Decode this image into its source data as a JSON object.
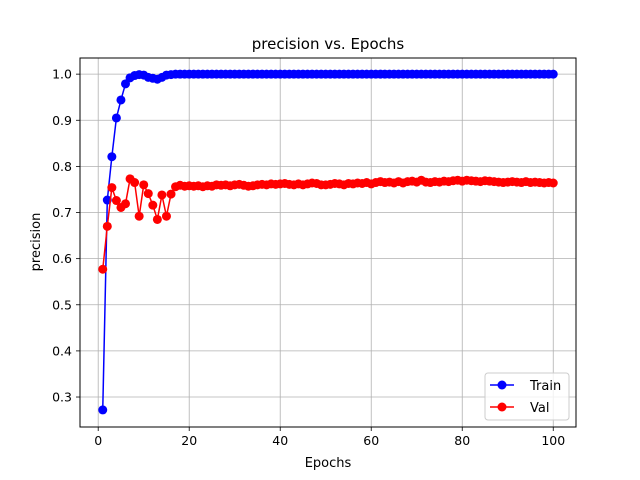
{
  "chart_data": {
    "type": "line",
    "title": "precision vs. Epochs",
    "xlabel": "Epochs",
    "ylabel": "precision",
    "xlim": [
      -4,
      105
    ],
    "ylim": [
      0.235,
      1.035
    ],
    "xticks": [
      0,
      20,
      40,
      60,
      80,
      100
    ],
    "yticks": [
      0.3,
      0.4,
      0.5,
      0.6,
      0.7,
      0.8,
      0.9,
      1.0
    ],
    "grid": true,
    "legend_position": "bottom-right",
    "x": [
      1,
      2,
      3,
      4,
      5,
      6,
      7,
      8,
      9,
      10,
      11,
      12,
      13,
      14,
      15,
      16,
      17,
      18,
      19,
      20,
      21,
      22,
      23,
      24,
      25,
      26,
      27,
      28,
      29,
      30,
      31,
      32,
      33,
      34,
      35,
      36,
      37,
      38,
      39,
      40,
      41,
      42,
      43,
      44,
      45,
      46,
      47,
      48,
      49,
      50,
      51,
      52,
      53,
      54,
      55,
      56,
      57,
      58,
      59,
      60,
      61,
      62,
      63,
      64,
      65,
      66,
      67,
      68,
      69,
      70,
      71,
      72,
      73,
      74,
      75,
      76,
      77,
      78,
      79,
      80,
      81,
      82,
      83,
      84,
      85,
      86,
      87,
      88,
      89,
      90,
      91,
      92,
      93,
      94,
      95,
      96,
      97,
      98,
      99,
      100
    ],
    "series": [
      {
        "name": "Train",
        "color": "#0000ff",
        "values": [
          0.272,
          0.727,
          0.821,
          0.905,
          0.944,
          0.979,
          0.992,
          0.997,
          0.999,
          0.998,
          0.993,
          0.991,
          0.989,
          0.993,
          0.998,
          0.999,
          1.0,
          1.0,
          1.0,
          1.0,
          1.0,
          1.0,
          1.0,
          1.0,
          1.0,
          1.0,
          1.0,
          1.0,
          1.0,
          1.0,
          1.0,
          1.0,
          1.0,
          1.0,
          1.0,
          1.0,
          1.0,
          1.0,
          1.0,
          1.0,
          1.0,
          1.0,
          1.0,
          1.0,
          1.0,
          1.0,
          1.0,
          1.0,
          1.0,
          1.0,
          1.0,
          1.0,
          1.0,
          1.0,
          1.0,
          1.0,
          1.0,
          1.0,
          1.0,
          1.0,
          1.0,
          1.0,
          1.0,
          1.0,
          1.0,
          1.0,
          1.0,
          1.0,
          1.0,
          1.0,
          1.0,
          1.0,
          1.0,
          1.0,
          1.0,
          1.0,
          1.0,
          1.0,
          1.0,
          1.0,
          1.0,
          1.0,
          1.0,
          1.0,
          1.0,
          1.0,
          1.0,
          1.0,
          1.0,
          1.0,
          1.0,
          1.0,
          1.0,
          1.0,
          1.0,
          1.0,
          1.0,
          1.0,
          1.0,
          1.0
        ]
      },
      {
        "name": "Val",
        "color": "#ff0000",
        "values": [
          0.577,
          0.67,
          0.754,
          0.726,
          0.711,
          0.719,
          0.773,
          0.765,
          0.692,
          0.76,
          0.741,
          0.716,
          0.685,
          0.738,
          0.692,
          0.74,
          0.756,
          0.759,
          0.757,
          0.758,
          0.757,
          0.758,
          0.756,
          0.758,
          0.757,
          0.76,
          0.759,
          0.76,
          0.758,
          0.76,
          0.761,
          0.759,
          0.757,
          0.758,
          0.76,
          0.761,
          0.76,
          0.762,
          0.761,
          0.762,
          0.763,
          0.761,
          0.76,
          0.762,
          0.76,
          0.762,
          0.764,
          0.763,
          0.76,
          0.76,
          0.761,
          0.763,
          0.762,
          0.76,
          0.763,
          0.762,
          0.764,
          0.763,
          0.765,
          0.762,
          0.765,
          0.767,
          0.765,
          0.766,
          0.764,
          0.767,
          0.764,
          0.767,
          0.768,
          0.766,
          0.77,
          0.766,
          0.765,
          0.767,
          0.766,
          0.768,
          0.767,
          0.769,
          0.77,
          0.768,
          0.77,
          0.769,
          0.768,
          0.767,
          0.769,
          0.768,
          0.767,
          0.766,
          0.765,
          0.766,
          0.767,
          0.766,
          0.765,
          0.767,
          0.765,
          0.766,
          0.765,
          0.764,
          0.765,
          0.764
        ]
      }
    ]
  }
}
